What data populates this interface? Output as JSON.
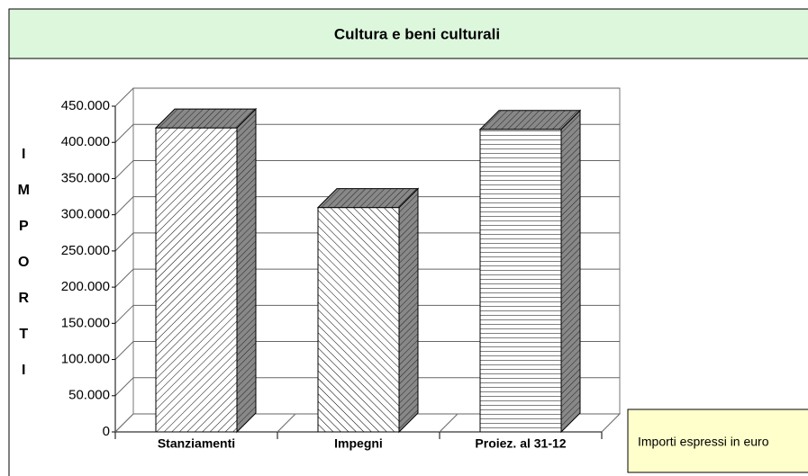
{
  "chart_data": {
    "type": "bar3d",
    "title": "Cultura e beni culturali",
    "ylabel": "IMPORTI",
    "categories": [
      "Stanziamenti",
      "Impegni",
      "Proiez. al 31-12"
    ],
    "values": [
      420000,
      310000,
      418000
    ],
    "ylim": [
      0,
      450000
    ],
    "yticks": [
      0,
      {
        "value": 50000,
        "label": "50.000"
      },
      {
        "value": 100000,
        "label": "100.000"
      },
      {
        "value": 150000,
        "label": "150.000"
      },
      {
        "value": 200000,
        "label": "200.000"
      },
      {
        "value": 250000,
        "label": "250.000"
      },
      {
        "value": 300000,
        "label": "300.000"
      },
      {
        "value": 350000,
        "label": "350.000"
      },
      {
        "value": 400000,
        "label": "400.000"
      },
      {
        "value": 450000,
        "label": "450.000"
      }
    ],
    "grid": true,
    "note": "Importi espressi in euro"
  }
}
